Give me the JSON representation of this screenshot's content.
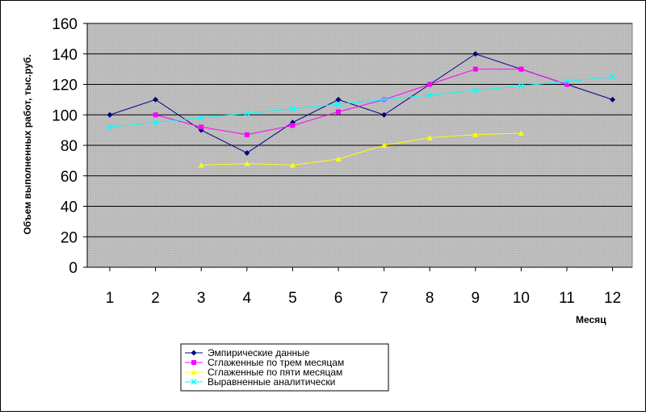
{
  "chart_data": {
    "type": "line",
    "title": "",
    "xlabel": "Месяц",
    "ylabel": "Объем выполненных работ, тыс.руб.",
    "ylim": [
      0,
      160
    ],
    "y_ticks": [
      0,
      20,
      40,
      60,
      80,
      100,
      120,
      140,
      160
    ],
    "x": [
      1,
      2,
      3,
      4,
      5,
      6,
      7,
      8,
      9,
      10,
      11,
      12
    ],
    "grid": true,
    "legend_position": "bottom",
    "series": [
      {
        "name": "Эмпирические данные",
        "color": "#000080",
        "marker": "diamond",
        "x": [
          1,
          2,
          3,
          4,
          5,
          6,
          7,
          8,
          9,
          10,
          11,
          12
        ],
        "values": [
          100,
          110,
          90,
          75,
          95,
          110,
          100,
          120,
          140,
          130,
          120,
          110
        ]
      },
      {
        "name": "Сглаженные по трем месяцам",
        "color": "#ff00ff",
        "marker": "square",
        "x": [
          2,
          3,
          4,
          5,
          6,
          7,
          8,
          9,
          10,
          11
        ],
        "values": [
          100,
          92,
          87,
          93,
          102,
          110,
          120,
          130,
          130,
          120
        ]
      },
      {
        "name": "Сглаженные по пяти месяцам",
        "color": "#ffff00",
        "marker": "triangle",
        "x": [
          3,
          4,
          5,
          6,
          7,
          8,
          9,
          10
        ],
        "values": [
          67,
          68,
          67,
          71,
          80,
          85,
          87,
          88
        ]
      },
      {
        "name": "Выравненные аналитически",
        "color": "#00ffff",
        "marker": "x",
        "x": [
          1,
          2,
          3,
          4,
          5,
          6,
          7,
          8,
          9,
          10,
          11,
          12
        ],
        "values": [
          92,
          95,
          98,
          101,
          104,
          107,
          110,
          113,
          116,
          119,
          122,
          125
        ]
      }
    ]
  }
}
